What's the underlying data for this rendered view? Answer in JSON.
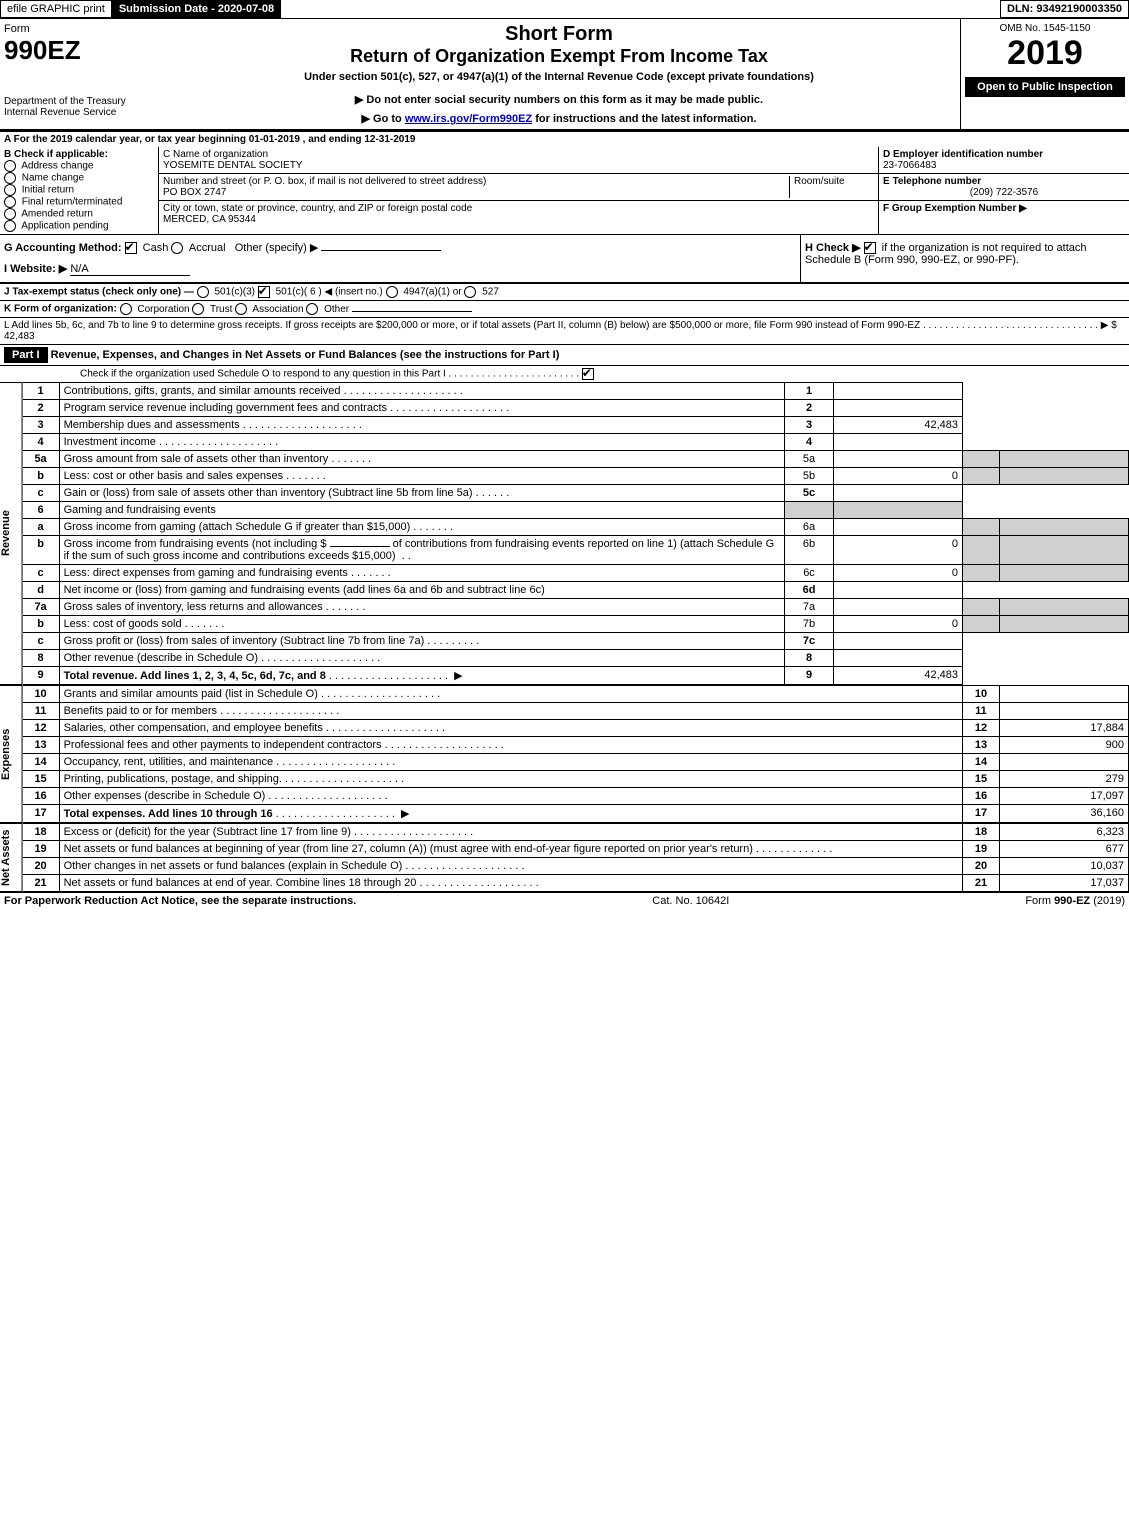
{
  "topbar": {
    "efile_label": "efile GRAPHIC print",
    "sub_date_label": "Submission Date - 2020-07-08",
    "dln_label": "DLN: 93492190003350"
  },
  "header": {
    "form_word": "Form",
    "form_number": "990EZ",
    "dept": "Department of the Treasury",
    "irs": "Internal Revenue Service",
    "short_form": "Short Form",
    "title": "Return of Organization Exempt From Income Tax",
    "subtitle": "Under section 501(c), 527, or 4947(a)(1) of the Internal Revenue Code (except private foundations)",
    "warn1": "▶ Do not enter social security numbers on this form as it may be made public.",
    "warn2": "▶ Go to www.irs.gov/Form990EZ for instructions and the latest information.",
    "omb": "OMB No. 1545-1150",
    "year": "2019",
    "open_public": "Open to Public Inspection"
  },
  "period": {
    "line": "A For the 2019 calendar year, or tax year beginning 01-01-2019 , and ending 12-31-2019"
  },
  "section_b": {
    "label": "B Check if applicable:",
    "opts": [
      "Address change",
      "Name change",
      "Initial return",
      "Final return/terminated",
      "Amended return",
      "Application pending"
    ]
  },
  "section_c": {
    "name_label": "C Name of organization",
    "name": "YOSEMITE DENTAL SOCIETY",
    "street_label": "Number and street (or P. O. box, if mail is not delivered to street address)",
    "room_label": "Room/suite",
    "street": "PO BOX 2747",
    "city_label": "City or town, state or province, country, and ZIP or foreign postal code",
    "city": "MERCED, CA  95344"
  },
  "section_d": {
    "label": "D Employer identification number",
    "value": "23-7066483"
  },
  "section_e": {
    "label": "E Telephone number",
    "value": "(209) 722-3576"
  },
  "section_f": {
    "label": "F Group Exemption Number ▶",
    "value": ""
  },
  "section_g": {
    "label": "G Accounting Method:",
    "cash": "Cash",
    "accrual": "Accrual",
    "other": "Other (specify) ▶"
  },
  "section_h": {
    "label": "H Check ▶",
    "text": "if the organization is not required to attach Schedule B (Form 990, 990-EZ, or 990-PF).",
    "checked": true
  },
  "section_i": {
    "label": "I Website: ▶",
    "value": "N/A"
  },
  "section_j": {
    "label": "J Tax-exempt status (check only one) —",
    "opt1": "501(c)(3)",
    "opt2": "501(c)( 6 ) ◀ (insert no.)",
    "opt3": "4947(a)(1) or",
    "opt4": "527",
    "checked_idx": 1
  },
  "section_k": {
    "label": "K Form of organization:",
    "opts": [
      "Corporation",
      "Trust",
      "Association",
      "Other"
    ]
  },
  "section_l": {
    "text": "L Add lines 5b, 6c, and 7b to line 9 to determine gross receipts. If gross receipts are $200,000 or more, or if total assets (Part II, column (B) below) are $500,000 or more, file Form 990 instead of Form 990-EZ",
    "arrow": "▶ $",
    "value": "42,483"
  },
  "part1": {
    "title": "Part I",
    "heading": "Revenue, Expenses, and Changes in Net Assets or Fund Balances (see the instructions for Part I)",
    "check_line": "Check if the organization used Schedule O to respond to any question in this Part I",
    "checked": true
  },
  "revenue_label": "Revenue",
  "expenses_label": "Expenses",
  "netassets_label": "Net Assets",
  "lines": {
    "1": {
      "desc": "Contributions, gifts, grants, and similar amounts received",
      "amt": ""
    },
    "2": {
      "desc": "Program service revenue including government fees and contracts",
      "amt": ""
    },
    "3": {
      "desc": "Membership dues and assessments",
      "amt": "42,483"
    },
    "4": {
      "desc": "Investment income",
      "amt": ""
    },
    "5a": {
      "desc": "Gross amount from sale of assets other than inventory",
      "mid": ""
    },
    "5b": {
      "desc": "Less: cost or other basis and sales expenses",
      "mid": "0"
    },
    "5c": {
      "desc": "Gain or (loss) from sale of assets other than inventory (Subtract line 5b from line 5a)",
      "amt": ""
    },
    "6": {
      "desc": "Gaming and fundraising events"
    },
    "6a": {
      "desc": "Gross income from gaming (attach Schedule G if greater than $15,000)",
      "mid": ""
    },
    "6b_pre": "Gross income from fundraising events (not including $",
    "6b_post": "of contributions from fundraising events reported on line 1) (attach Schedule G if the sum of such gross income and contributions exceeds $15,000)",
    "6b": {
      "mid": "0"
    },
    "6c": {
      "desc": "Less: direct expenses from gaming and fundraising events",
      "mid": "0"
    },
    "6d": {
      "desc": "Net income or (loss) from gaming and fundraising events (add lines 6a and 6b and subtract line 6c)",
      "amt": ""
    },
    "7a": {
      "desc": "Gross sales of inventory, less returns and allowances",
      "mid": ""
    },
    "7b": {
      "desc": "Less: cost of goods sold",
      "mid": "0"
    },
    "7c": {
      "desc": "Gross profit or (loss) from sales of inventory (Subtract line 7b from line 7a)",
      "amt": ""
    },
    "8": {
      "desc": "Other revenue (describe in Schedule O)",
      "amt": ""
    },
    "9": {
      "desc": "Total revenue. Add lines 1, 2, 3, 4, 5c, 6d, 7c, and 8",
      "amt": "42,483",
      "bold": true
    },
    "10": {
      "desc": "Grants and similar amounts paid (list in Schedule O)",
      "amt": ""
    },
    "11": {
      "desc": "Benefits paid to or for members",
      "amt": ""
    },
    "12": {
      "desc": "Salaries, other compensation, and employee benefits",
      "amt": "17,884"
    },
    "13": {
      "desc": "Professional fees and other payments to independent contractors",
      "amt": "900"
    },
    "14": {
      "desc": "Occupancy, rent, utilities, and maintenance",
      "amt": ""
    },
    "15": {
      "desc": "Printing, publications, postage, and shipping.",
      "amt": "279"
    },
    "16": {
      "desc": "Other expenses (describe in Schedule O)",
      "amt": "17,097"
    },
    "17": {
      "desc": "Total expenses. Add lines 10 through 16",
      "amt": "36,160",
      "bold": true
    },
    "18": {
      "desc": "Excess or (deficit) for the year (Subtract line 17 from line 9)",
      "amt": "6,323"
    },
    "19": {
      "desc": "Net assets or fund balances at beginning of year (from line 27, column (A)) (must agree with end-of-year figure reported on prior year's return)",
      "amt": "677"
    },
    "20": {
      "desc": "Other changes in net assets or fund balances (explain in Schedule O)",
      "amt": "10,037"
    },
    "21": {
      "desc": "Net assets or fund balances at end of year. Combine lines 18 through 20",
      "amt": "17,037"
    }
  },
  "footer": {
    "left": "For Paperwork Reduction Act Notice, see the separate instructions.",
    "mid": "Cat. No. 10642I",
    "right": "Form 990-EZ (2019)"
  }
}
